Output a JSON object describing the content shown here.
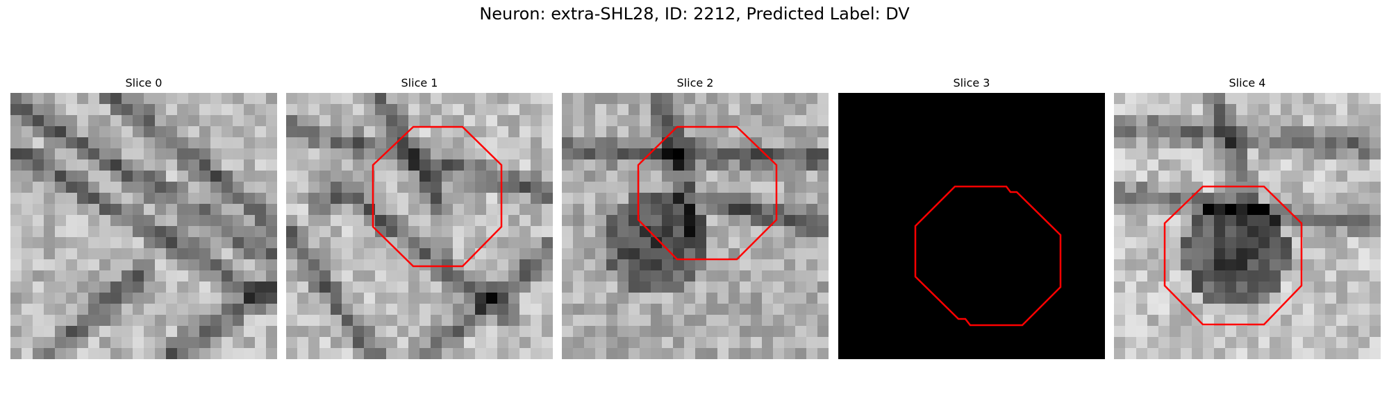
{
  "figure": {
    "title": "Neuron: extra-SHL28, ID: 2212, Predicted Label: DV"
  },
  "panels": [
    {
      "title": "Slice 0",
      "image": "grayscale-em-patch",
      "roi_outline": false
    },
    {
      "title": "Slice 1",
      "image": "grayscale-em-patch",
      "roi_outline": true
    },
    {
      "title": "Slice 2",
      "image": "grayscale-em-patch",
      "roi_outline": true
    },
    {
      "title": "Slice 3",
      "image": "black-empty-patch",
      "roi_outline": true
    },
    {
      "title": "Slice 4",
      "image": "grayscale-em-patch",
      "roi_outline": true
    }
  ],
  "colors": {
    "roi_outline": "#ff0000",
    "background": "#ffffff"
  }
}
